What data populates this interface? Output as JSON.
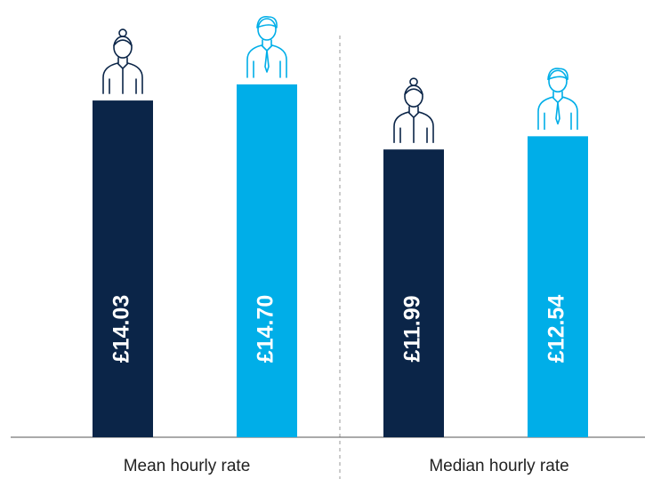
{
  "chart_data": {
    "type": "bar",
    "categories": [
      "Mean hourly rate",
      "Median hourly rate"
    ],
    "series": [
      {
        "color": "#0b2548",
        "values": [
          14.03,
          11.99
        ],
        "value_labels": [
          "£14.03",
          "£11.99"
        ]
      },
      {
        "color": "#00aee8",
        "values": [
          14.7,
          12.54
        ],
        "value_labels": [
          "£14.70",
          "£12.54"
        ]
      }
    ]
  }
}
